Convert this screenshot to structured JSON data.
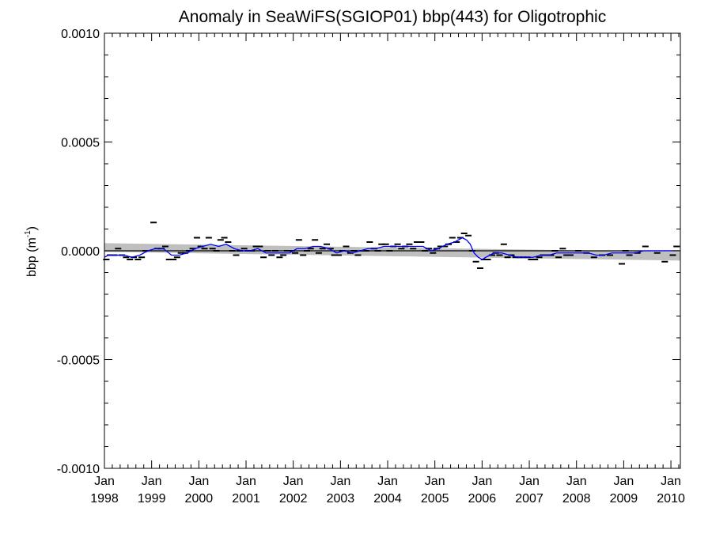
{
  "chart_data": {
    "type": "line",
    "title": "Anomaly in SeaWiFS(SGIOP01) bbp(443) for Oligotrophic",
    "ylabel": {
      "base": "bbp (m",
      "sup": "-1",
      "close": ")"
    },
    "xlabel": "",
    "xlim": [
      1998.0,
      2010.2
    ],
    "ylim": [
      -0.001,
      0.001
    ],
    "y_ticks": [
      {
        "value": 0.001,
        "label": "0.0010"
      },
      {
        "value": 0.0005,
        "label": "0.0005"
      },
      {
        "value": 0.0,
        "label": "0.0000"
      },
      {
        "value": -0.0005,
        "label": "-0.0005"
      },
      {
        "value": -0.001,
        "label": "-0.0010"
      }
    ],
    "x_ticks": [
      {
        "value": 1998,
        "month": "Jan",
        "year": "1998"
      },
      {
        "value": 1999,
        "month": "Jan",
        "year": "1999"
      },
      {
        "value": 2000,
        "month": "Jan",
        "year": "2000"
      },
      {
        "value": 2001,
        "month": "Jan",
        "year": "2001"
      },
      {
        "value": 2002,
        "month": "Jan",
        "year": "2002"
      },
      {
        "value": 2003,
        "month": "Jan",
        "year": "2003"
      },
      {
        "value": 2004,
        "month": "Jan",
        "year": "2004"
      },
      {
        "value": 2005,
        "month": "Jan",
        "year": "2005"
      },
      {
        "value": 2006,
        "month": "Jan",
        "year": "2006"
      },
      {
        "value": 2007,
        "month": "Jan",
        "year": "2007"
      },
      {
        "value": 2008,
        "month": "Jan",
        "year": "2008"
      },
      {
        "value": 2009,
        "month": "Jan",
        "year": "2009"
      },
      {
        "value": 2010,
        "month": "Jan",
        "year": "2010"
      }
    ],
    "grid": false,
    "legend": "none",
    "colors": {
      "smoothed": "#0000ff",
      "monthly": "#000000",
      "zero_line": "#000000",
      "trend_band": "#bfbfbf"
    },
    "trend_band": {
      "start": {
        "x": 1998.0,
        "lower": -5e-06,
        "upper": 3.5e-05
      },
      "end": {
        "x": 2010.2,
        "lower": -4.5e-05,
        "upper": -5e-06
      }
    },
    "zero_line": 0.0,
    "monthly_values": [
      {
        "x": 1998.04,
        "y": -4e-05
      },
      {
        "x": 1998.12,
        "y": -2e-05
      },
      {
        "x": 1998.21,
        "y": -2e-05
      },
      {
        "x": 1998.29,
        "y": 1e-05
      },
      {
        "x": 1998.37,
        "y": -2e-05
      },
      {
        "x": 1998.46,
        "y": -3e-05
      },
      {
        "x": 1998.54,
        "y": -4e-05
      },
      {
        "x": 1998.62,
        "y": -3e-05
      },
      {
        "x": 1998.71,
        "y": -4e-05
      },
      {
        "x": 1998.79,
        "y": -3e-05
      },
      {
        "x": 1998.87,
        "y": 0.0
      },
      {
        "x": 1999.04,
        "y": 0.00013
      },
      {
        "x": 1999.12,
        "y": 1e-05
      },
      {
        "x": 1999.21,
        "y": 1e-05
      },
      {
        "x": 1999.29,
        "y": 2e-05
      },
      {
        "x": 1999.37,
        "y": -4e-05
      },
      {
        "x": 1999.46,
        "y": -4e-05
      },
      {
        "x": 1999.54,
        "y": -3e-05
      },
      {
        "x": 1999.62,
        "y": -1e-05
      },
      {
        "x": 1999.71,
        "y": -1e-05
      },
      {
        "x": 1999.79,
        "y": 0.0
      },
      {
        "x": 1999.87,
        "y": 1e-05
      },
      {
        "x": 1999.96,
        "y": 6e-05
      },
      {
        "x": 2000.04,
        "y": 2e-05
      },
      {
        "x": 2000.12,
        "y": 1e-05
      },
      {
        "x": 2000.21,
        "y": 6e-05
      },
      {
        "x": 2000.29,
        "y": 1e-05
      },
      {
        "x": 2000.37,
        "y": 0.0
      },
      {
        "x": 2000.46,
        "y": 5e-05
      },
      {
        "x": 2000.54,
        "y": 6e-05
      },
      {
        "x": 2000.62,
        "y": 4e-05
      },
      {
        "x": 2000.71,
        "y": 0.0
      },
      {
        "x": 2000.79,
        "y": -2e-05
      },
      {
        "x": 2000.87,
        "y": 0.0
      },
      {
        "x": 2000.96,
        "y": 1e-05
      },
      {
        "x": 2001.04,
        "y": 0.0
      },
      {
        "x": 2001.12,
        "y": 0.0
      },
      {
        "x": 2001.21,
        "y": 2e-05
      },
      {
        "x": 2001.29,
        "y": 2e-05
      },
      {
        "x": 2001.37,
        "y": -3e-05
      },
      {
        "x": 2001.46,
        "y": 0.0
      },
      {
        "x": 2001.54,
        "y": -2e-05
      },
      {
        "x": 2001.62,
        "y": 0.0
      },
      {
        "x": 2001.71,
        "y": -3e-05
      },
      {
        "x": 2001.79,
        "y": -2e-05
      },
      {
        "x": 2001.87,
        "y": 0.0
      },
      {
        "x": 2001.96,
        "y": 0.0
      },
      {
        "x": 2002.04,
        "y": -1e-05
      },
      {
        "x": 2002.12,
        "y": 5e-05
      },
      {
        "x": 2002.21,
        "y": -2e-05
      },
      {
        "x": 2002.29,
        "y": 0.0
      },
      {
        "x": 2002.37,
        "y": 1e-05
      },
      {
        "x": 2002.46,
        "y": 5e-05
      },
      {
        "x": 2002.54,
        "y": -1e-05
      },
      {
        "x": 2002.62,
        "y": 1e-05
      },
      {
        "x": 2002.71,
        "y": 3e-05
      },
      {
        "x": 2002.79,
        "y": 1e-05
      },
      {
        "x": 2002.87,
        "y": -2e-05
      },
      {
        "x": 2002.96,
        "y": -2e-05
      },
      {
        "x": 2003.04,
        "y": 0.0
      },
      {
        "x": 2003.12,
        "y": 2e-05
      },
      {
        "x": 2003.21,
        "y": -1e-05
      },
      {
        "x": 2003.29,
        "y": 0.0
      },
      {
        "x": 2003.37,
        "y": -2e-05
      },
      {
        "x": 2003.46,
        "y": 0.0
      },
      {
        "x": 2003.54,
        "y": 0.0
      },
      {
        "x": 2003.62,
        "y": 4e-05
      },
      {
        "x": 2003.71,
        "y": 1e-05
      },
      {
        "x": 2003.79,
        "y": 0.0
      },
      {
        "x": 2003.87,
        "y": 3e-05
      },
      {
        "x": 2003.96,
        "y": 3e-05
      },
      {
        "x": 2004.04,
        "y": 0.0
      },
      {
        "x": 2004.12,
        "y": 2e-05
      },
      {
        "x": 2004.21,
        "y": 3e-05
      },
      {
        "x": 2004.29,
        "y": 1e-05
      },
      {
        "x": 2004.37,
        "y": 2e-05
      },
      {
        "x": 2004.46,
        "y": 3e-05
      },
      {
        "x": 2004.54,
        "y": 1e-05
      },
      {
        "x": 2004.62,
        "y": 4e-05
      },
      {
        "x": 2004.71,
        "y": 4e-05
      },
      {
        "x": 2004.79,
        "y": 0.0
      },
      {
        "x": 2004.87,
        "y": 1e-05
      },
      {
        "x": 2004.96,
        "y": -1e-05
      },
      {
        "x": 2005.04,
        "y": 1e-05
      },
      {
        "x": 2005.12,
        "y": 2e-05
      },
      {
        "x": 2005.21,
        "y": 2e-05
      },
      {
        "x": 2005.29,
        "y": 3e-05
      },
      {
        "x": 2005.37,
        "y": 6e-05
      },
      {
        "x": 2005.46,
        "y": 4e-05
      },
      {
        "x": 2005.54,
        "y": 6e-05
      },
      {
        "x": 2005.62,
        "y": 8e-05
      },
      {
        "x": 2005.71,
        "y": 7e-05
      },
      {
        "x": 2005.79,
        "y": 0.0
      },
      {
        "x": 2005.87,
        "y": -5e-05
      },
      {
        "x": 2005.96,
        "y": -8e-05
      },
      {
        "x": 2006.04,
        "y": -4e-05
      },
      {
        "x": 2006.12,
        "y": -4e-05
      },
      {
        "x": 2006.21,
        "y": -2e-05
      },
      {
        "x": 2006.29,
        "y": -1e-05
      },
      {
        "x": 2006.37,
        "y": -2e-05
      },
      {
        "x": 2006.46,
        "y": 3e-05
      },
      {
        "x": 2006.54,
        "y": -3e-05
      },
      {
        "x": 2006.62,
        "y": -2e-05
      },
      {
        "x": 2006.71,
        "y": -3e-05
      },
      {
        "x": 2006.79,
        "y": -3e-05
      },
      {
        "x": 2006.87,
        "y": -3e-05
      },
      {
        "x": 2006.96,
        "y": -3e-05
      },
      {
        "x": 2007.04,
        "y": -4e-05
      },
      {
        "x": 2007.12,
        "y": -4e-05
      },
      {
        "x": 2007.21,
        "y": -3e-05
      },
      {
        "x": 2007.29,
        "y": -2e-05
      },
      {
        "x": 2007.37,
        "y": -2e-05
      },
      {
        "x": 2007.46,
        "y": -2e-05
      },
      {
        "x": 2007.54,
        "y": 0.0
      },
      {
        "x": 2007.62,
        "y": -3e-05
      },
      {
        "x": 2007.71,
        "y": 1e-05
      },
      {
        "x": 2007.79,
        "y": -2e-05
      },
      {
        "x": 2007.87,
        "y": -2e-05
      },
      {
        "x": 2008.04,
        "y": 0.0
      },
      {
        "x": 2008.21,
        "y": -1e-05
      },
      {
        "x": 2008.37,
        "y": -3e-05
      },
      {
        "x": 2008.54,
        "y": -2e-05
      },
      {
        "x": 2008.71,
        "y": -2e-05
      },
      {
        "x": 2008.96,
        "y": -6e-05
      },
      {
        "x": 2009.04,
        "y": 0.0
      },
      {
        "x": 2009.12,
        "y": -2e-05
      },
      {
        "x": 2009.29,
        "y": -1e-05
      },
      {
        "x": 2009.46,
        "y": 2e-05
      },
      {
        "x": 2009.71,
        "y": -1e-05
      },
      {
        "x": 2009.87,
        "y": -5e-05
      },
      {
        "x": 2010.04,
        "y": -2e-05
      },
      {
        "x": 2010.12,
        "y": 2e-05
      }
    ],
    "smoothed_series": [
      {
        "x": 1998.0,
        "y": -3e-05
      },
      {
        "x": 1998.08,
        "y": -2e-05
      },
      {
        "x": 1998.25,
        "y": -2e-05
      },
      {
        "x": 1998.42,
        "y": -2e-05
      },
      {
        "x": 1998.58,
        "y": -3e-05
      },
      {
        "x": 1998.75,
        "y": -2e-05
      },
      {
        "x": 1998.92,
        "y": 0.0
      },
      {
        "x": 1999.08,
        "y": 1e-05
      },
      {
        "x": 1999.25,
        "y": 1e-05
      },
      {
        "x": 1999.42,
        "y": -2e-05
      },
      {
        "x": 1999.58,
        "y": -2e-05
      },
      {
        "x": 1999.75,
        "y": -1e-05
      },
      {
        "x": 1999.92,
        "y": 1e-05
      },
      {
        "x": 2000.08,
        "y": 2e-05
      },
      {
        "x": 2000.25,
        "y": 3e-05
      },
      {
        "x": 2000.42,
        "y": 2e-05
      },
      {
        "x": 2000.58,
        "y": 3e-05
      },
      {
        "x": 2000.75,
        "y": 1e-05
      },
      {
        "x": 2000.92,
        "y": 0.0
      },
      {
        "x": 2001.08,
        "y": 0.0
      },
      {
        "x": 2001.25,
        "y": 1e-05
      },
      {
        "x": 2001.42,
        "y": -1e-05
      },
      {
        "x": 2001.58,
        "y": -1e-05
      },
      {
        "x": 2001.75,
        "y": -1e-05
      },
      {
        "x": 2001.92,
        "y": -1e-05
      },
      {
        "x": 2002.08,
        "y": 1e-05
      },
      {
        "x": 2002.25,
        "y": 1e-05
      },
      {
        "x": 2002.42,
        "y": 2e-05
      },
      {
        "x": 2002.58,
        "y": 2e-05
      },
      {
        "x": 2002.75,
        "y": 1e-05
      },
      {
        "x": 2002.92,
        "y": -1e-05
      },
      {
        "x": 2003.08,
        "y": 0.0
      },
      {
        "x": 2003.25,
        "y": -1e-05
      },
      {
        "x": 2003.42,
        "y": 0.0
      },
      {
        "x": 2003.58,
        "y": 1e-05
      },
      {
        "x": 2003.75,
        "y": 1e-05
      },
      {
        "x": 2003.92,
        "y": 2e-05
      },
      {
        "x": 2004.08,
        "y": 2e-05
      },
      {
        "x": 2004.25,
        "y": 2e-05
      },
      {
        "x": 2004.42,
        "y": 2e-05
      },
      {
        "x": 2004.58,
        "y": 2e-05
      },
      {
        "x": 2004.75,
        "y": 2e-05
      },
      {
        "x": 2004.92,
        "y": 0.0
      },
      {
        "x": 2005.08,
        "y": 1e-05
      },
      {
        "x": 2005.25,
        "y": 3e-05
      },
      {
        "x": 2005.42,
        "y": 4e-05
      },
      {
        "x": 2005.58,
        "y": 6e-05
      },
      {
        "x": 2005.67,
        "y": 5e-05
      },
      {
        "x": 2005.75,
        "y": 3e-05
      },
      {
        "x": 2005.83,
        "y": -1e-05
      },
      {
        "x": 2005.92,
        "y": -3e-05
      },
      {
        "x": 2006.0,
        "y": -4e-05
      },
      {
        "x": 2006.08,
        "y": -3e-05
      },
      {
        "x": 2006.25,
        "y": -1e-05
      },
      {
        "x": 2006.42,
        "y": -1e-05
      },
      {
        "x": 2006.58,
        "y": -2e-05
      },
      {
        "x": 2006.75,
        "y": -3e-05
      },
      {
        "x": 2006.92,
        "y": -3e-05
      },
      {
        "x": 2007.08,
        "y": -3e-05
      },
      {
        "x": 2007.25,
        "y": -2e-05
      },
      {
        "x": 2007.42,
        "y": -2e-05
      },
      {
        "x": 2007.58,
        "y": -1e-05
      },
      {
        "x": 2007.75,
        "y": -1e-05
      },
      {
        "x": 2007.92,
        "y": -1e-05
      },
      {
        "x": 2008.08,
        "y": -1e-05
      },
      {
        "x": 2008.25,
        "y": -1e-05
      },
      {
        "x": 2008.42,
        "y": -2e-05
      },
      {
        "x": 2008.58,
        "y": -2e-05
      },
      {
        "x": 2008.75,
        "y": -1e-05
      },
      {
        "x": 2008.92,
        "y": -1e-05
      },
      {
        "x": 2009.08,
        "y": -1e-05
      },
      {
        "x": 2009.25,
        "y": -1e-05
      },
      {
        "x": 2009.42,
        "y": 0.0
      },
      {
        "x": 2009.58,
        "y": 0.0
      },
      {
        "x": 2009.75,
        "y": 0.0
      },
      {
        "x": 2009.92,
        "y": 0.0
      },
      {
        "x": 2010.08,
        "y": 0.0
      },
      {
        "x": 2010.17,
        "y": 0.0
      }
    ]
  }
}
